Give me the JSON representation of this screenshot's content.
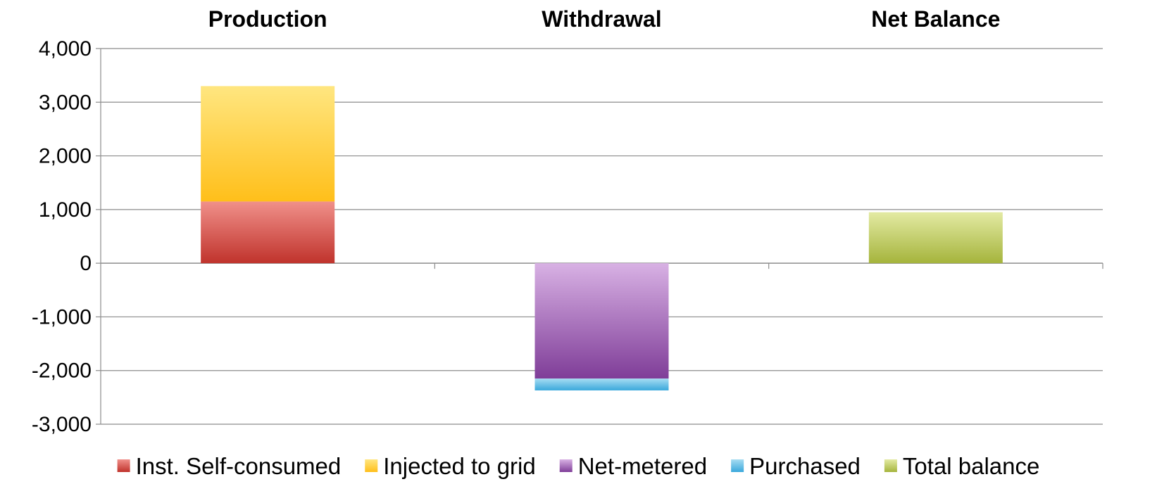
{
  "chart_data": {
    "type": "bar",
    "stacked": true,
    "categories": [
      "Production",
      "Withdrawal",
      "Net Balance"
    ],
    "category_label_position": "top",
    "ylim": [
      -3000,
      4000
    ],
    "yticks": [
      4000,
      3000,
      2000,
      1000,
      0,
      -1000,
      -2000,
      -3000
    ],
    "ytick_labels": [
      "4,000",
      "3,000",
      "2,000",
      "1,000",
      "0",
      "-1,000",
      "-2,000",
      "-3,000"
    ],
    "grid": true,
    "legend_position": "bottom",
    "series": [
      {
        "name": "Inst. Self-consumed",
        "values": [
          1150,
          0,
          0
        ],
        "color": "#c0332c",
        "color_light": "#f0908a"
      },
      {
        "name": "Injected to grid",
        "values": [
          2150,
          0,
          0
        ],
        "color": "#ffbf1a",
        "color_light": "#ffe680"
      },
      {
        "name": "Net-metered",
        "values": [
          0,
          -2150,
          0
        ],
        "color": "#7f3d98",
        "color_light": "#d8b1e4"
      },
      {
        "name": "Purchased",
        "values": [
          0,
          -220,
          0
        ],
        "color": "#3aa8dc",
        "color_light": "#a6dcf2"
      },
      {
        "name": "Total balance",
        "values": [
          0,
          0,
          950
        ],
        "color": "#a5b43c",
        "color_light": "#e3eaa3"
      }
    ]
  }
}
